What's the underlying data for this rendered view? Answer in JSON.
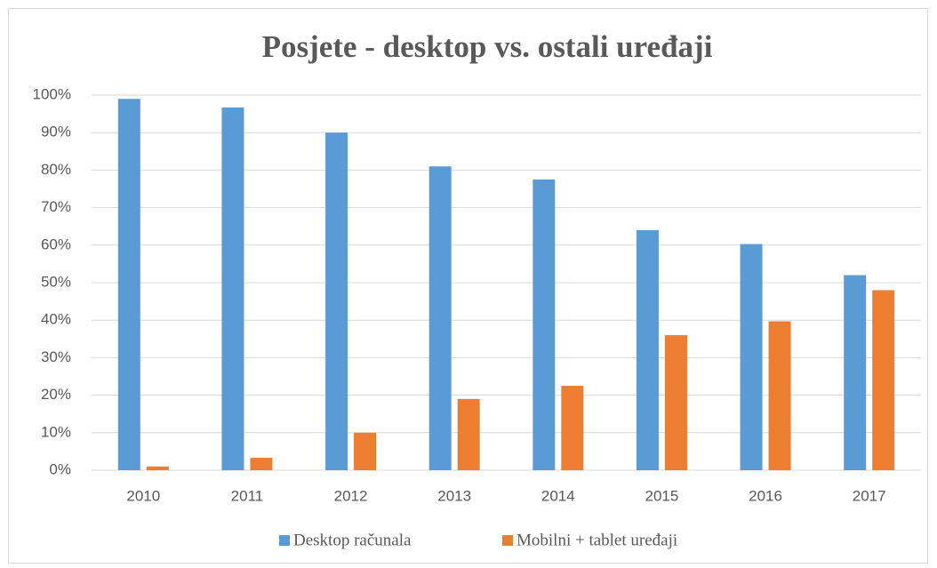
{
  "chart_data": {
    "type": "bar",
    "title": "Posjete - desktop vs. ostali uređaji",
    "categories": [
      "2010",
      "2011",
      "2012",
      "2013",
      "2014",
      "2015",
      "2016",
      "2017"
    ],
    "series": [
      {
        "name": "Desktop računala",
        "color": "#5b9bd5",
        "values": [
          99,
          96.7,
          90,
          81,
          77.5,
          64,
          60.3,
          52
        ]
      },
      {
        "name": "Mobilni + tablet uređaji",
        "color": "#ed7d31",
        "values": [
          1,
          3.3,
          10,
          19,
          22.5,
          36,
          39.7,
          48
        ]
      }
    ],
    "ylim": [
      0,
      100
    ],
    "yticks": [
      {
        "value": 0,
        "label": "0%"
      },
      {
        "value": 10,
        "label": "10%"
      },
      {
        "value": 20,
        "label": "20%"
      },
      {
        "value": 30,
        "label": "30%"
      },
      {
        "value": 40,
        "label": "40%"
      },
      {
        "value": 50,
        "label": "50%"
      },
      {
        "value": 60,
        "label": "60%"
      },
      {
        "value": 70,
        "label": "70%"
      },
      {
        "value": 80,
        "label": "80%"
      },
      {
        "value": 90,
        "label": "90%"
      },
      {
        "value": 100,
        "label": "100%"
      }
    ],
    "grid": true,
    "legend": "bottom"
  }
}
